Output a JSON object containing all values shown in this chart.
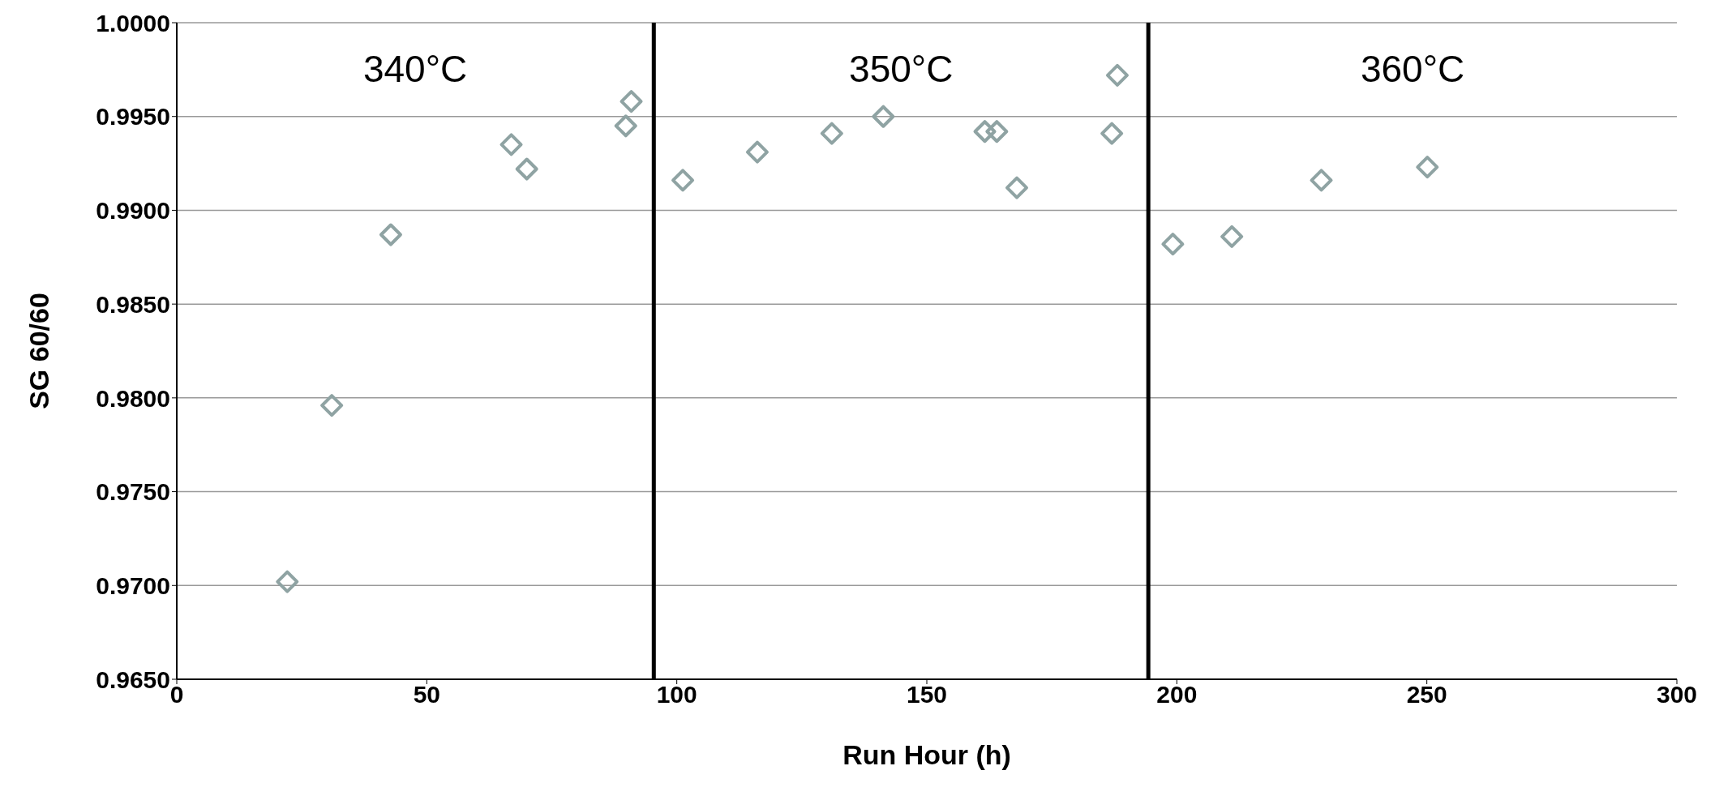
{
  "chart_data": {
    "type": "scatter",
    "xlabel": "Run Hour (h)",
    "ylabel": "SG 60/60",
    "x": [
      22.1,
      31.0,
      42.8,
      66.9,
      70.0,
      89.8,
      90.9,
      101.2,
      116.1,
      131.0,
      141.3,
      161.6,
      164.0,
      168.0,
      187.0,
      188.1,
      199.2,
      211.0,
      228.9,
      250.1
    ],
    "series": [
      {
        "color": "#8fa3a3",
        "values": [
          0.9702,
          0.9796,
          0.9887,
          0.9935,
          0.9922,
          0.9945,
          0.9958,
          0.9916,
          0.9931,
          0.9941,
          0.995,
          0.9942,
          0.9942,
          0.9912,
          0.9941,
          0.9972,
          0.9882,
          0.9886,
          0.9916,
          0.9923
        ]
      }
    ],
    "xlim": [
      0,
      300
    ],
    "xticks": [
      0,
      50,
      100,
      150,
      200,
      250,
      300
    ],
    "ylim": [
      0.965,
      1.0
    ],
    "yticks": [
      {
        "value": 0.965,
        "label": "0.9650"
      },
      {
        "value": 0.97,
        "label": "0.9700"
      },
      {
        "value": 0.975,
        "label": "0.9750"
      },
      {
        "value": 0.98,
        "label": "0.9800"
      },
      {
        "value": 0.985,
        "label": "0.9850"
      },
      {
        "value": 0.99,
        "label": "0.9900"
      },
      {
        "value": 0.995,
        "label": "0.9950"
      },
      {
        "value": 1.0,
        "label": "1.0000"
      }
    ],
    "ref_lines": [
      {
        "axis": "x",
        "value": 95.4,
        "color": "#000000"
      },
      {
        "axis": "x",
        "value": 194.3,
        "color": "#000000"
      }
    ],
    "annotations": [
      "340°C",
      "350°C",
      "360°C"
    ],
    "grid": "y",
    "marker": "diamond",
    "legend": false
  }
}
